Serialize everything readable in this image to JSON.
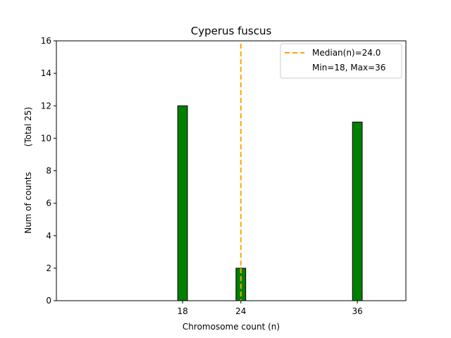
{
  "chart_data": {
    "type": "bar",
    "title": "Cyperus fuscus",
    "xlabel": "Chromosome count (n)",
    "ylabel": "Num of counts",
    "ylabel_note": "(Total 25)",
    "x": [
      18,
      24,
      36
    ],
    "values": [
      12,
      2,
      11
    ],
    "bar_width": 1,
    "xlim": [
      5,
      41
    ],
    "ylim": [
      0,
      16
    ],
    "xticks": [
      18,
      24,
      36
    ],
    "yticks": [
      0,
      2,
      4,
      6,
      8,
      10,
      12,
      14,
      16
    ],
    "bar_color": "#008000",
    "edge_color": "#000000",
    "baseline_extent": [
      12,
      39
    ],
    "median": {
      "value": 24.0,
      "label": "Median(n)=24.0",
      "color": "#FFA500"
    },
    "legend": {
      "position": "top-right",
      "entries": [
        "Median(n)=24.0",
        "Min=18, Max=36"
      ]
    },
    "grid": false
  }
}
